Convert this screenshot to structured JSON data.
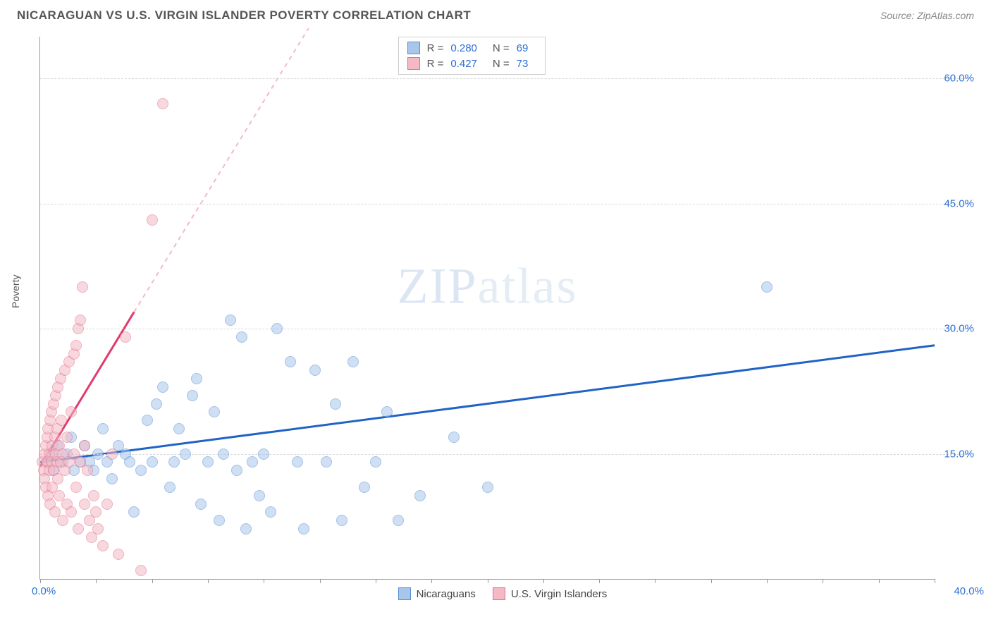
{
  "title": "NICARAGUAN VS U.S. VIRGIN ISLANDER POVERTY CORRELATION CHART",
  "source_prefix": "Source: ",
  "source_name": "ZipAtlas.com",
  "ylabel": "Poverty",
  "watermark_a": "ZIP",
  "watermark_b": "atlas",
  "chart": {
    "type": "scatter",
    "xlim": [
      0,
      40
    ],
    "ylim": [
      0,
      65
    ],
    "x_start_label": "0.0%",
    "x_end_label": "40.0%",
    "y_ticks": [
      15,
      30,
      45,
      60
    ],
    "y_tick_labels": [
      "15.0%",
      "30.0%",
      "45.0%",
      "60.0%"
    ],
    "x_minor_ticks": [
      0,
      2.5,
      5,
      7.5,
      10,
      12.5,
      15,
      17.5,
      20,
      22.5,
      25,
      27.5,
      30,
      32.5,
      35,
      37.5,
      40
    ],
    "grid_color": "#d9d9d9",
    "background_color": "#ffffff",
    "marker_radius": 8,
    "marker_opacity": 0.55,
    "series": [
      {
        "key": "nicaraguans",
        "label": "Nicaraguans",
        "fill": "#a8c6ec",
        "stroke": "#5a8fd4",
        "line_color": "#1f63c7",
        "R": "0.280",
        "N": "69",
        "trend": {
          "x1": 0,
          "y1": 14,
          "x2": 40,
          "y2": 28,
          "dash_extend": false
        },
        "points": [
          [
            0.3,
            14
          ],
          [
            0.5,
            15
          ],
          [
            0.6,
            13
          ],
          [
            0.8,
            16
          ],
          [
            1.0,
            14
          ],
          [
            1.2,
            15
          ],
          [
            1.4,
            17
          ],
          [
            1.5,
            13
          ],
          [
            1.8,
            14
          ],
          [
            2.0,
            16
          ],
          [
            2.2,
            14
          ],
          [
            2.4,
            13
          ],
          [
            2.6,
            15
          ],
          [
            2.8,
            18
          ],
          [
            3.0,
            14
          ],
          [
            3.2,
            12
          ],
          [
            3.5,
            16
          ],
          [
            3.8,
            15
          ],
          [
            4.0,
            14
          ],
          [
            4.2,
            8
          ],
          [
            4.5,
            13
          ],
          [
            4.8,
            19
          ],
          [
            5.0,
            14
          ],
          [
            5.2,
            21
          ],
          [
            5.5,
            23
          ],
          [
            5.8,
            11
          ],
          [
            6.0,
            14
          ],
          [
            6.2,
            18
          ],
          [
            6.5,
            15
          ],
          [
            6.8,
            22
          ],
          [
            7.0,
            24
          ],
          [
            7.2,
            9
          ],
          [
            7.5,
            14
          ],
          [
            7.8,
            20
          ],
          [
            8.0,
            7
          ],
          [
            8.2,
            15
          ],
          [
            8.5,
            31
          ],
          [
            8.8,
            13
          ],
          [
            9.0,
            29
          ],
          [
            9.2,
            6
          ],
          [
            9.5,
            14
          ],
          [
            9.8,
            10
          ],
          [
            10.0,
            15
          ],
          [
            10.3,
            8
          ],
          [
            10.6,
            30
          ],
          [
            11.2,
            26
          ],
          [
            11.5,
            14
          ],
          [
            11.8,
            6
          ],
          [
            12.3,
            25
          ],
          [
            12.8,
            14
          ],
          [
            13.2,
            21
          ],
          [
            13.5,
            7
          ],
          [
            14.0,
            26
          ],
          [
            14.5,
            11
          ],
          [
            15.0,
            14
          ],
          [
            15.5,
            20
          ],
          [
            16.0,
            7
          ],
          [
            17.0,
            10
          ],
          [
            18.5,
            17
          ],
          [
            20.0,
            11
          ],
          [
            32.5,
            35
          ]
        ]
      },
      {
        "key": "usvi",
        "label": "U.S. Virgin Islanders",
        "fill": "#f4b9c5",
        "stroke": "#e56f8b",
        "line_color": "#e23a6a",
        "R": "0.427",
        "N": "73",
        "trend": {
          "x1": 0,
          "y1": 13.5,
          "x2": 4.2,
          "y2": 32,
          "dash_extend": true,
          "dash_x2": 12,
          "dash_y2": 66
        },
        "points": [
          [
            0.1,
            14
          ],
          [
            0.15,
            13
          ],
          [
            0.2,
            15
          ],
          [
            0.2,
            12
          ],
          [
            0.25,
            16
          ],
          [
            0.25,
            11
          ],
          [
            0.3,
            17
          ],
          [
            0.3,
            14
          ],
          [
            0.35,
            10
          ],
          [
            0.35,
            18
          ],
          [
            0.4,
            15
          ],
          [
            0.4,
            13
          ],
          [
            0.45,
            19
          ],
          [
            0.45,
            9
          ],
          [
            0.5,
            20
          ],
          [
            0.5,
            14
          ],
          [
            0.55,
            16
          ],
          [
            0.55,
            11
          ],
          [
            0.6,
            21
          ],
          [
            0.6,
            13
          ],
          [
            0.65,
            17
          ],
          [
            0.65,
            8
          ],
          [
            0.7,
            22
          ],
          [
            0.7,
            15
          ],
          [
            0.75,
            14
          ],
          [
            0.75,
            18
          ],
          [
            0.8,
            12
          ],
          [
            0.8,
            23
          ],
          [
            0.85,
            16
          ],
          [
            0.85,
            10
          ],
          [
            0.9,
            24
          ],
          [
            0.9,
            14
          ],
          [
            0.95,
            19
          ],
          [
            1.0,
            15
          ],
          [
            1.0,
            7
          ],
          [
            1.1,
            25
          ],
          [
            1.1,
            13
          ],
          [
            1.2,
            17
          ],
          [
            1.2,
            9
          ],
          [
            1.3,
            26
          ],
          [
            1.3,
            14
          ],
          [
            1.4,
            20
          ],
          [
            1.4,
            8
          ],
          [
            1.5,
            27
          ],
          [
            1.5,
            15
          ],
          [
            1.6,
            11
          ],
          [
            1.6,
            28
          ],
          [
            1.7,
            30
          ],
          [
            1.7,
            6
          ],
          [
            1.8,
            14
          ],
          [
            1.8,
            31
          ],
          [
            1.9,
            35
          ],
          [
            2.0,
            16
          ],
          [
            2.0,
            9
          ],
          [
            2.1,
            13
          ],
          [
            2.2,
            7
          ],
          [
            2.3,
            5
          ],
          [
            2.4,
            10
          ],
          [
            2.5,
            8
          ],
          [
            2.6,
            6
          ],
          [
            2.8,
            4
          ],
          [
            3.0,
            9
          ],
          [
            3.2,
            15
          ],
          [
            3.5,
            3
          ],
          [
            3.8,
            29
          ],
          [
            4.5,
            1
          ],
          [
            5.0,
            43
          ],
          [
            5.5,
            57
          ]
        ]
      }
    ]
  },
  "stats_labels": {
    "R": "R =",
    "N": "N ="
  }
}
